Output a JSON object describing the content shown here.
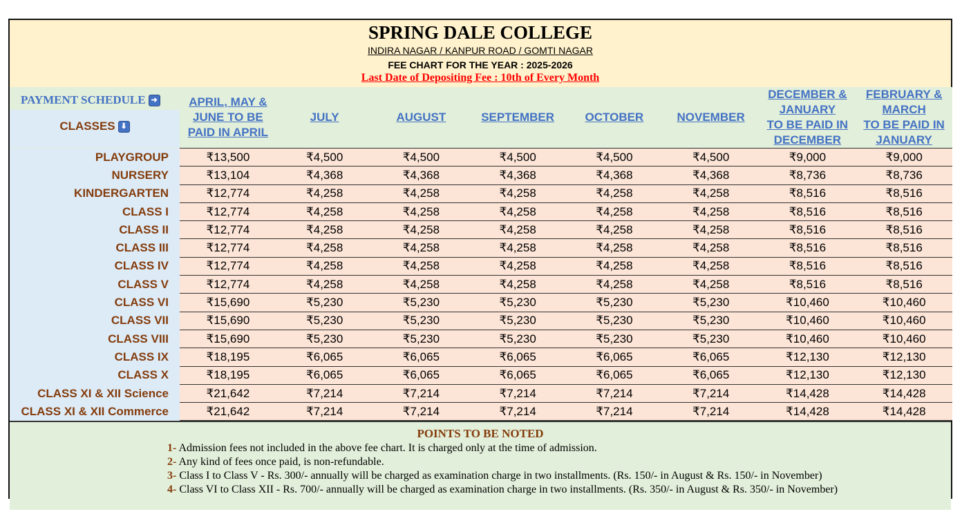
{
  "header": {
    "title": "SPRING DALE COLLEGE",
    "locations": "INDIRA NAGAR / KANPUR ROAD / GOMTI NAGAR",
    "fee_chart_year": "FEE CHART FOR THE YEAR : 2025-2026",
    "last_date": "Last Date of Depositing Fee : 10th of Every Month"
  },
  "payment_schedule_label": "PAYMENT SCHEDULE",
  "classes_label": "CLASSES",
  "icons": {
    "payment_schedule": "arrow-right-icon",
    "classes": "arrow-down-icon"
  },
  "colors": {
    "header_bg": "#fff2cc",
    "green_bg": "#e2efda",
    "blue_bg": "#ddebf7",
    "cell_bg": "#fce4d6",
    "link_blue": "#4472c4",
    "brown": "#843c0c",
    "red": "#ff0000"
  },
  "columns": [
    [
      "APRIL, MAY &",
      "JUNE TO BE",
      "PAID IN APRIL"
    ],
    [
      "JULY"
    ],
    [
      "AUGUST"
    ],
    [
      "SEPTEMBER"
    ],
    [
      "OCTOBER"
    ],
    [
      "NOVEMBER"
    ],
    [
      "DECEMBER &",
      "JANUARY",
      "TO BE PAID IN",
      "DECEMBER"
    ],
    [
      "FEBRUARY &",
      "MARCH",
      "TO BE PAID IN",
      "JANUARY"
    ]
  ],
  "rows": [
    {
      "class": "PLAYGROUP",
      "fees": [
        "₹13,500",
        "₹4,500",
        "₹4,500",
        "₹4,500",
        "₹4,500",
        "₹4,500",
        "₹9,000",
        "₹9,000"
      ]
    },
    {
      "class": "NURSERY",
      "fees": [
        "₹13,104",
        "₹4,368",
        "₹4,368",
        "₹4,368",
        "₹4,368",
        "₹4,368",
        "₹8,736",
        "₹8,736"
      ]
    },
    {
      "class": "KINDERGARTEN",
      "fees": [
        "₹12,774",
        "₹4,258",
        "₹4,258",
        "₹4,258",
        "₹4,258",
        "₹4,258",
        "₹8,516",
        "₹8,516"
      ]
    },
    {
      "class": "CLASS I",
      "fees": [
        "₹12,774",
        "₹4,258",
        "₹4,258",
        "₹4,258",
        "₹4,258",
        "₹4,258",
        "₹8,516",
        "₹8,516"
      ]
    },
    {
      "class": "CLASS II",
      "fees": [
        "₹12,774",
        "₹4,258",
        "₹4,258",
        "₹4,258",
        "₹4,258",
        "₹4,258",
        "₹8,516",
        "₹8,516"
      ]
    },
    {
      "class": "CLASS III",
      "fees": [
        "₹12,774",
        "₹4,258",
        "₹4,258",
        "₹4,258",
        "₹4,258",
        "₹4,258",
        "₹8,516",
        "₹8,516"
      ]
    },
    {
      "class": "CLASS IV",
      "fees": [
        "₹12,774",
        "₹4,258",
        "₹4,258",
        "₹4,258",
        "₹4,258",
        "₹4,258",
        "₹8,516",
        "₹8,516"
      ]
    },
    {
      "class": "CLASS V",
      "fees": [
        "₹12,774",
        "₹4,258",
        "₹4,258",
        "₹4,258",
        "₹4,258",
        "₹4,258",
        "₹8,516",
        "₹8,516"
      ]
    },
    {
      "class": "CLASS VI",
      "fees": [
        "₹15,690",
        "₹5,230",
        "₹5,230",
        "₹5,230",
        "₹5,230",
        "₹5,230",
        "₹10,460",
        "₹10,460"
      ]
    },
    {
      "class": "CLASS VII",
      "fees": [
        "₹15,690",
        "₹5,230",
        "₹5,230",
        "₹5,230",
        "₹5,230",
        "₹5,230",
        "₹10,460",
        "₹10,460"
      ]
    },
    {
      "class": "CLASS VIII",
      "fees": [
        "₹15,690",
        "₹5,230",
        "₹5,230",
        "₹5,230",
        "₹5,230",
        "₹5,230",
        "₹10,460",
        "₹10,460"
      ]
    },
    {
      "class": "CLASS IX",
      "fees": [
        "₹18,195",
        "₹6,065",
        "₹6,065",
        "₹6,065",
        "₹6,065",
        "₹6,065",
        "₹12,130",
        "₹12,130"
      ]
    },
    {
      "class": "CLASS X",
      "fees": [
        "₹18,195",
        "₹6,065",
        "₹6,065",
        "₹6,065",
        "₹6,065",
        "₹6,065",
        "₹12,130",
        "₹12,130"
      ]
    },
    {
      "class": "CLASS XI & XII Science",
      "fees": [
        "₹21,642",
        "₹7,214",
        "₹7,214",
        "₹7,214",
        "₹7,214",
        "₹7,214",
        "₹14,428",
        "₹14,428"
      ]
    },
    {
      "class": "CLASS XI & XII Commerce",
      "fees": [
        "₹21,642",
        "₹7,214",
        "₹7,214",
        "₹7,214",
        "₹7,214",
        "₹7,214",
        "₹14,428",
        "₹14,428"
      ]
    }
  ],
  "notes": {
    "title": "POINTS TO BE NOTED",
    "items": [
      {
        "num": "1-",
        "text": "Admission fees not included in the above fee chart. It is charged only at the time of admission."
      },
      {
        "num": "2-",
        "text": "Any kind of fees once paid, is non-refundable."
      },
      {
        "num": "3-",
        "text": "Class I to Class V - Rs. 300/- annually will be charged as examination charge in two installments. (Rs. 150/- in August & Rs. 150/- in November)"
      },
      {
        "num": "4-",
        "text": "Class VI to Class XII - Rs. 700/- annually will be charged as examination charge in two installments. (Rs. 350/- in August & Rs. 350/- in November)"
      }
    ]
  }
}
